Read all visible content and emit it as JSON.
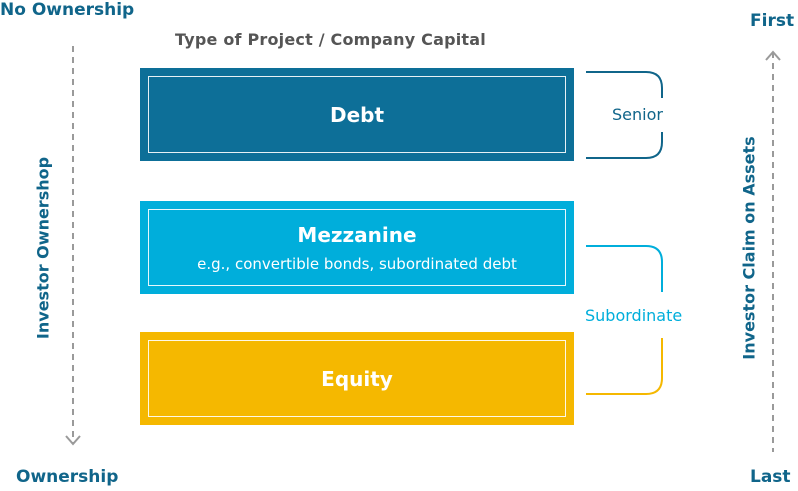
{
  "corners": {
    "top_left": "No Ownership",
    "bottom_left": "Ownership",
    "top_right": "First",
    "bottom_right": "Last"
  },
  "title": "Type of Project / Company Capital",
  "axes": {
    "left_label": "Investor Ownershop",
    "right_label": "Investor Claim on Assets"
  },
  "tiers": [
    {
      "name": "Debt",
      "subtitle": "",
      "color": "#0d6f98"
    },
    {
      "name": "Mezzanine",
      "subtitle": "e.g., convertible bonds, subordinated debt",
      "color": "#00aedb"
    },
    {
      "name": "Equity",
      "subtitle": "",
      "color": "#f5b800"
    }
  ],
  "brackets": {
    "senior": {
      "label": "Senior",
      "color": "#10658a"
    },
    "subordinate": {
      "label": "Subordinate",
      "color": "#00aedb"
    }
  },
  "colors": {
    "arrow": "#9a9a9a",
    "accent": "#10658a",
    "equity_bracket": "#f5b800"
  }
}
